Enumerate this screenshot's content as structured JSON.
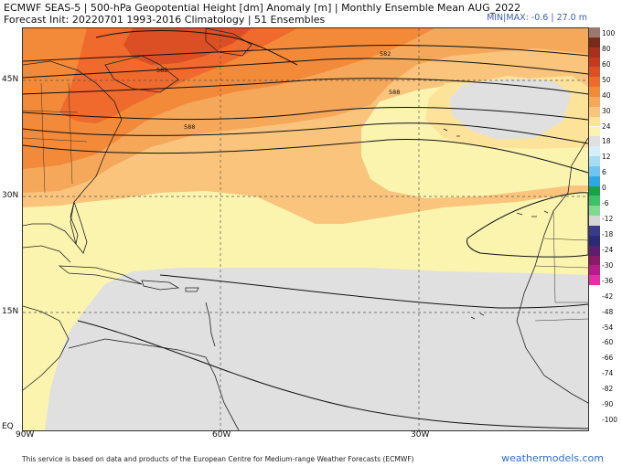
{
  "header": {
    "line1": "ECMWF SEAS-5 | 500-hPa Geopotential Height [dm] Anomaly [m] | Monthly Ensemble Mean AUG_2022",
    "line2": "Forecast Init: 20220701    1993-2016 Climatology | 51 Ensembles",
    "minmax_prefix": "MIN|MAX: ",
    "minmax_values": "-0.6 | 27.0 m"
  },
  "map": {
    "lat_labels": [
      "45N",
      "30N",
      "15N",
      "EQ"
    ],
    "lon_labels": [
      "90W",
      "60W",
      "30W"
    ],
    "contour_labels": [
      "582",
      "588",
      "588",
      "582"
    ]
  },
  "colorbar": {
    "labels": [
      "100",
      "80",
      "60",
      "50",
      "40",
      "30",
      "24",
      "18",
      "12",
      "6",
      "0",
      "-6",
      "-12",
      "-18",
      "-24",
      "-30",
      "-36",
      "-42",
      "-48",
      "-54",
      "-60",
      "-66",
      "-74",
      "-82",
      "-90",
      "-100"
    ],
    "colors": [
      "#9b7a6d",
      "#7a2a1a",
      "#a8301c",
      "#c43a1e",
      "#dc4e24",
      "#ef6a2c",
      "#f38a3a",
      "#f6a85a",
      "#fac47c",
      "#fde39a",
      "#fbf4ae",
      "#e0e0e0",
      "#d5effa",
      "#a6ddf5",
      "#6fc5ef",
      "#2ea8e0",
      "#18a34a",
      "#3cc06a",
      "#7fd98e",
      "#d6d6d6",
      "#3a3a8a",
      "#2a2a7a",
      "#5c1f6e",
      "#8a1a6a",
      "#b81c8a",
      "#e32ea6"
    ]
  },
  "footer": {
    "credit": "This service is based on data and products of the European Centre for Medium-range Weather Forecasts (ECMWF)",
    "brand": "weathermodels.com"
  }
}
